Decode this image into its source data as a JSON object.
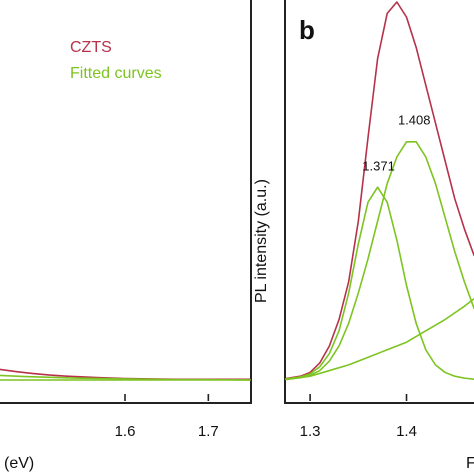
{
  "chart_data": [
    {
      "panel": "a",
      "type": "line",
      "xlabel": "(eV)",
      "ylabel": "",
      "xlim": [
        1.45,
        1.75
      ],
      "ylim": [
        0,
        1
      ],
      "x_ticks": [
        {
          "value": 1.6,
          "label": "1.6"
        },
        {
          "value": 1.7,
          "label": "1.7"
        }
      ],
      "legend": {
        "placement": "top-right",
        "entries": [
          {
            "label": "CZTS",
            "color": "#b5324a"
          },
          {
            "label": "Fitted curves",
            "color": "#7dc421"
          }
        ]
      },
      "series": [
        {
          "name": "CZTS",
          "color": "#b5324a",
          "x": [
            1.45,
            1.47,
            1.49,
            1.51,
            1.53,
            1.55,
            1.57,
            1.6,
            1.63,
            1.66,
            1.7,
            1.75
          ],
          "y": [
            0.028,
            0.022,
            0.017,
            0.013,
            0.01,
            0.008,
            0.006,
            0.004,
            0.003,
            0.002,
            0.002,
            0.002
          ]
        },
        {
          "name": "Fitted curves",
          "color": "#7dc421",
          "x": [
            1.45,
            1.5,
            1.55,
            1.6,
            1.65,
            1.7,
            1.75
          ],
          "y": [
            0.0,
            0.0,
            0.0,
            0.0,
            0.0,
            0.0,
            0.0
          ]
        },
        {
          "name": "Fitted curves",
          "color": "#7dc421",
          "x": [
            1.45,
            1.48,
            1.51,
            1.54,
            1.57,
            1.6,
            1.63,
            1.66,
            1.7,
            1.75
          ],
          "y": [
            0.012,
            0.009,
            0.007,
            0.005,
            0.004,
            0.003,
            0.002,
            0.001,
            0.001,
            0.0
          ]
        }
      ]
    },
    {
      "panel": "b",
      "panel_label": "b",
      "type": "line",
      "xlabel": "F",
      "ylabel": "PL intensity (a.u.)",
      "xlim": [
        1.275,
        1.47
      ],
      "ylim": [
        0,
        1
      ],
      "x_ticks": [
        {
          "value": 1.3,
          "label": "1.3"
        },
        {
          "value": 1.4,
          "label": "1.4"
        }
      ],
      "annotations": [
        {
          "text": "1.371",
          "x": 1.371,
          "y": 0.528
        },
        {
          "text": "1.408",
          "x": 1.408,
          "y": 0.65
        }
      ],
      "series": [
        {
          "name": "CZTS",
          "color": "#b5324a",
          "x": [
            1.275,
            1.29,
            1.3,
            1.31,
            1.32,
            1.33,
            1.34,
            1.35,
            1.36,
            1.37,
            1.38,
            1.39,
            1.4,
            1.41,
            1.42,
            1.43,
            1.44,
            1.45,
            1.46,
            1.47
          ],
          "y": [
            0.004,
            0.01,
            0.02,
            0.045,
            0.09,
            0.16,
            0.26,
            0.42,
            0.64,
            0.85,
            0.97,
            1.0,
            0.96,
            0.88,
            0.78,
            0.68,
            0.58,
            0.48,
            0.4,
            0.33
          ]
        },
        {
          "name": "Fitted curves",
          "color": "#7dc421",
          "x": [
            1.275,
            1.29,
            1.3,
            1.31,
            1.32,
            1.33,
            1.34,
            1.35,
            1.36,
            1.37,
            1.38,
            1.39,
            1.4,
            1.41,
            1.42,
            1.43,
            1.44,
            1.45,
            1.46,
            1.47
          ],
          "y": [
            0.003,
            0.008,
            0.016,
            0.035,
            0.07,
            0.13,
            0.23,
            0.36,
            0.47,
            0.51,
            0.47,
            0.37,
            0.25,
            0.15,
            0.08,
            0.04,
            0.02,
            0.01,
            0.005,
            0.002
          ]
        },
        {
          "name": "Fitted curves",
          "color": "#7dc421",
          "x": [
            1.275,
            1.29,
            1.3,
            1.31,
            1.32,
            1.33,
            1.34,
            1.35,
            1.36,
            1.37,
            1.38,
            1.39,
            1.4,
            1.41,
            1.42,
            1.43,
            1.44,
            1.45,
            1.46,
            1.47
          ],
          "y": [
            0.002,
            0.006,
            0.012,
            0.025,
            0.05,
            0.09,
            0.15,
            0.23,
            0.32,
            0.42,
            0.52,
            0.59,
            0.63,
            0.63,
            0.59,
            0.52,
            0.43,
            0.34,
            0.26,
            0.19
          ]
        },
        {
          "name": "Fitted curves",
          "color": "#7dc421",
          "x": [
            1.275,
            1.3,
            1.32,
            1.34,
            1.36,
            1.38,
            1.4,
            1.42,
            1.44,
            1.46,
            1.47
          ],
          "y": [
            0.001,
            0.01,
            0.025,
            0.04,
            0.06,
            0.08,
            0.1,
            0.13,
            0.16,
            0.195,
            0.215
          ]
        }
      ]
    }
  ]
}
